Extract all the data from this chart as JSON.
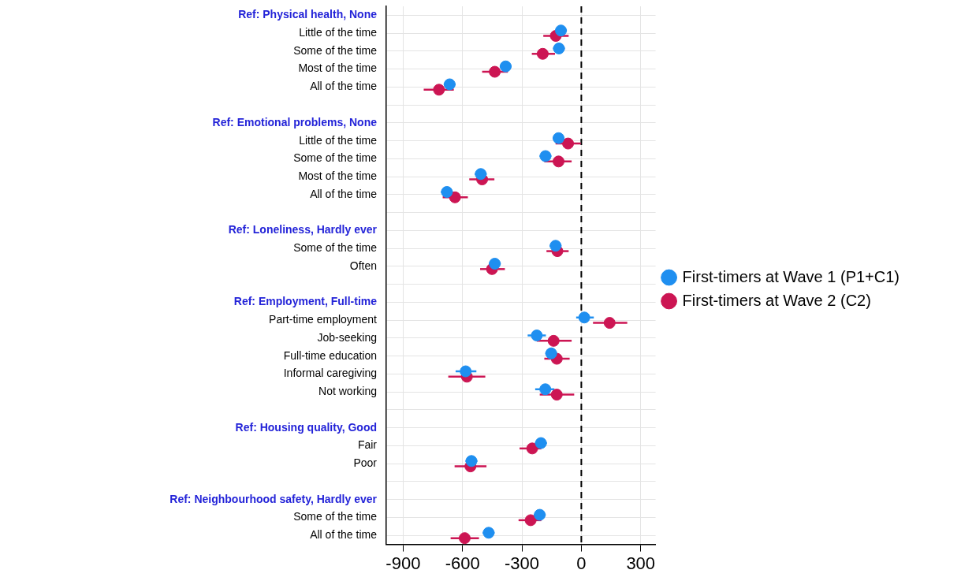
{
  "chart_data": {
    "type": "scatter",
    "orientation": "horizontal",
    "marker": "circle",
    "grid": true,
    "legend": "right",
    "categories": [
      "Ref: Physical health, None",
      "Little of the time",
      "Some of the time",
      "Most of the time",
      "All of the time",
      null,
      "Ref: Emotional problems, None",
      "Little of the time",
      "Some of the time",
      "Most of the time",
      "All of the time",
      null,
      "Ref: Loneliness, Hardly ever",
      "Some of the time",
      "Often",
      null,
      "Ref: Employment, Full-time",
      "Part-time employment",
      "Job-seeking",
      "Full-time education",
      "Informal caregiving",
      "Not working",
      null,
      "Ref: Housing quality, Good",
      "Fair",
      "Poor",
      null,
      "Ref: Neighbourhood safety, Hardly ever",
      "Some of the time",
      "All of the time"
    ],
    "xlim": [
      -985,
      375
    ],
    "xticks": [
      -900,
      -600,
      -300,
      0,
      300
    ],
    "ref_lines": [
      {
        "axis": "x",
        "value": 0,
        "color": "#000000",
        "line_style": "dashed"
      }
    ],
    "series": [
      {
        "name": "First-timers at Wave 1 (P1+C1)",
        "color": "#1f8ff0",
        "values": [
          null,
          -103,
          -113,
          -382,
          -665,
          null,
          null,
          -115,
          -181,
          -508,
          -679,
          null,
          null,
          -130,
          -437,
          null,
          null,
          15,
          -225,
          -152,
          -584,
          -182,
          null,
          null,
          -204,
          -555,
          null,
          null,
          -210,
          -468
        ],
        "errors": [
          null,
          30,
          30,
          30,
          30,
          null,
          null,
          30,
          30,
          30,
          30,
          null,
          null,
          30,
          30,
          null,
          null,
          [
            -26,
            63
          ],
          [
            -271,
            -179
          ],
          30,
          [
            -635,
            -530
          ],
          [
            -233,
            -136
          ],
          null,
          null,
          30,
          30,
          null,
          null,
          30,
          30
        ]
      },
      {
        "name": "First-timers at Wave 2 (C2)",
        "color": "#cc1553",
        "values": [
          null,
          -129,
          -195,
          -437,
          -719,
          null,
          null,
          -67,
          -115,
          -501,
          -638,
          null,
          null,
          -121,
          -451,
          null,
          null,
          143,
          -140,
          -124,
          -578,
          -124,
          null,
          null,
          -248,
          -560,
          null,
          null,
          -256,
          -589
        ],
        "errors": [
          null,
          [
            -192,
            -64
          ],
          [
            -250,
            -133
          ],
          [
            -501,
            -371
          ],
          [
            -796,
            -644
          ],
          null,
          null,
          [
            -130,
            -3
          ],
          [
            -187,
            -49
          ],
          [
            -566,
            -439
          ],
          [
            -700,
            -573
          ],
          null,
          null,
          [
            -176,
            -64
          ],
          [
            -511,
            -386
          ],
          null,
          null,
          [
            59,
            232
          ],
          [
            -225,
            -49
          ],
          [
            -187,
            -59
          ],
          [
            -672,
            -485
          ],
          [
            -210,
            -36
          ],
          null,
          null,
          [
            -312,
            -202
          ],
          [
            -640,
            -479
          ],
          null,
          null,
          [
            -317,
            -202
          ],
          [
            -660,
            -517
          ]
        ]
      }
    ]
  }
}
